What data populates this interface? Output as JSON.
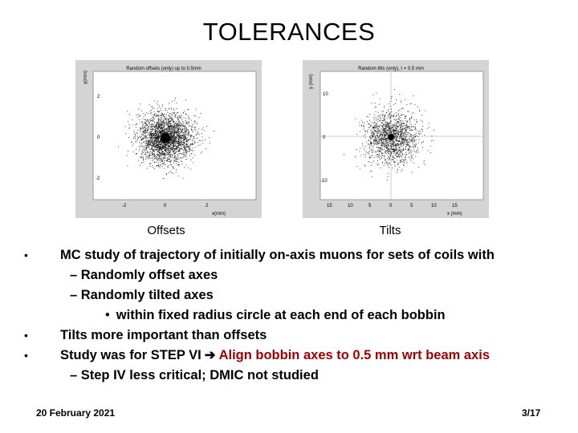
{
  "slide": {
    "title": "TOLERANCES",
    "footer_date": "20 February 2021",
    "page_number": "3/17"
  },
  "plots": {
    "offsets": {
      "caption": "Offsets",
      "plot_title": "Random offsets (only) up to 0.5mm",
      "ylabel": "y(mm)",
      "xlabel": "x(mm)",
      "yticks": [
        "2",
        "0",
        "-2"
      ],
      "xticks": [
        "-2",
        "0",
        "2"
      ]
    },
    "tilts": {
      "caption": "Tilts",
      "plot_title": "Random tilts (only), t = 0.5 mm",
      "ylabel": "y (mm)",
      "xlabel": "x (mm)",
      "yticks": [
        "10",
        "0",
        "-10"
      ],
      "xticks": [
        "15",
        "10",
        "5",
        "0",
        "5",
        "10",
        "15"
      ]
    }
  },
  "bullets": [
    {
      "text": "MC study of trajectory of initially on-axis muons for sets of coils with"
    },
    {
      "text": "– Randomly offset axes"
    },
    {
      "text": "– Randomly tilted axes"
    },
    {
      "text": "within fixed radius circle at each end of each bobbin"
    },
    {
      "text": "Tilts more important than offsets"
    },
    {
      "text_plain": "Study was for STEP VI",
      "text_red": "Align bobbin axes to 0.5 mm wrt beam axis"
    },
    {
      "text": "– Step IV less critical; DMIC not studied"
    }
  ],
  "bullet_marker": "•",
  "arrow_glyph": "➔",
  "accent_color": "#a00000"
}
